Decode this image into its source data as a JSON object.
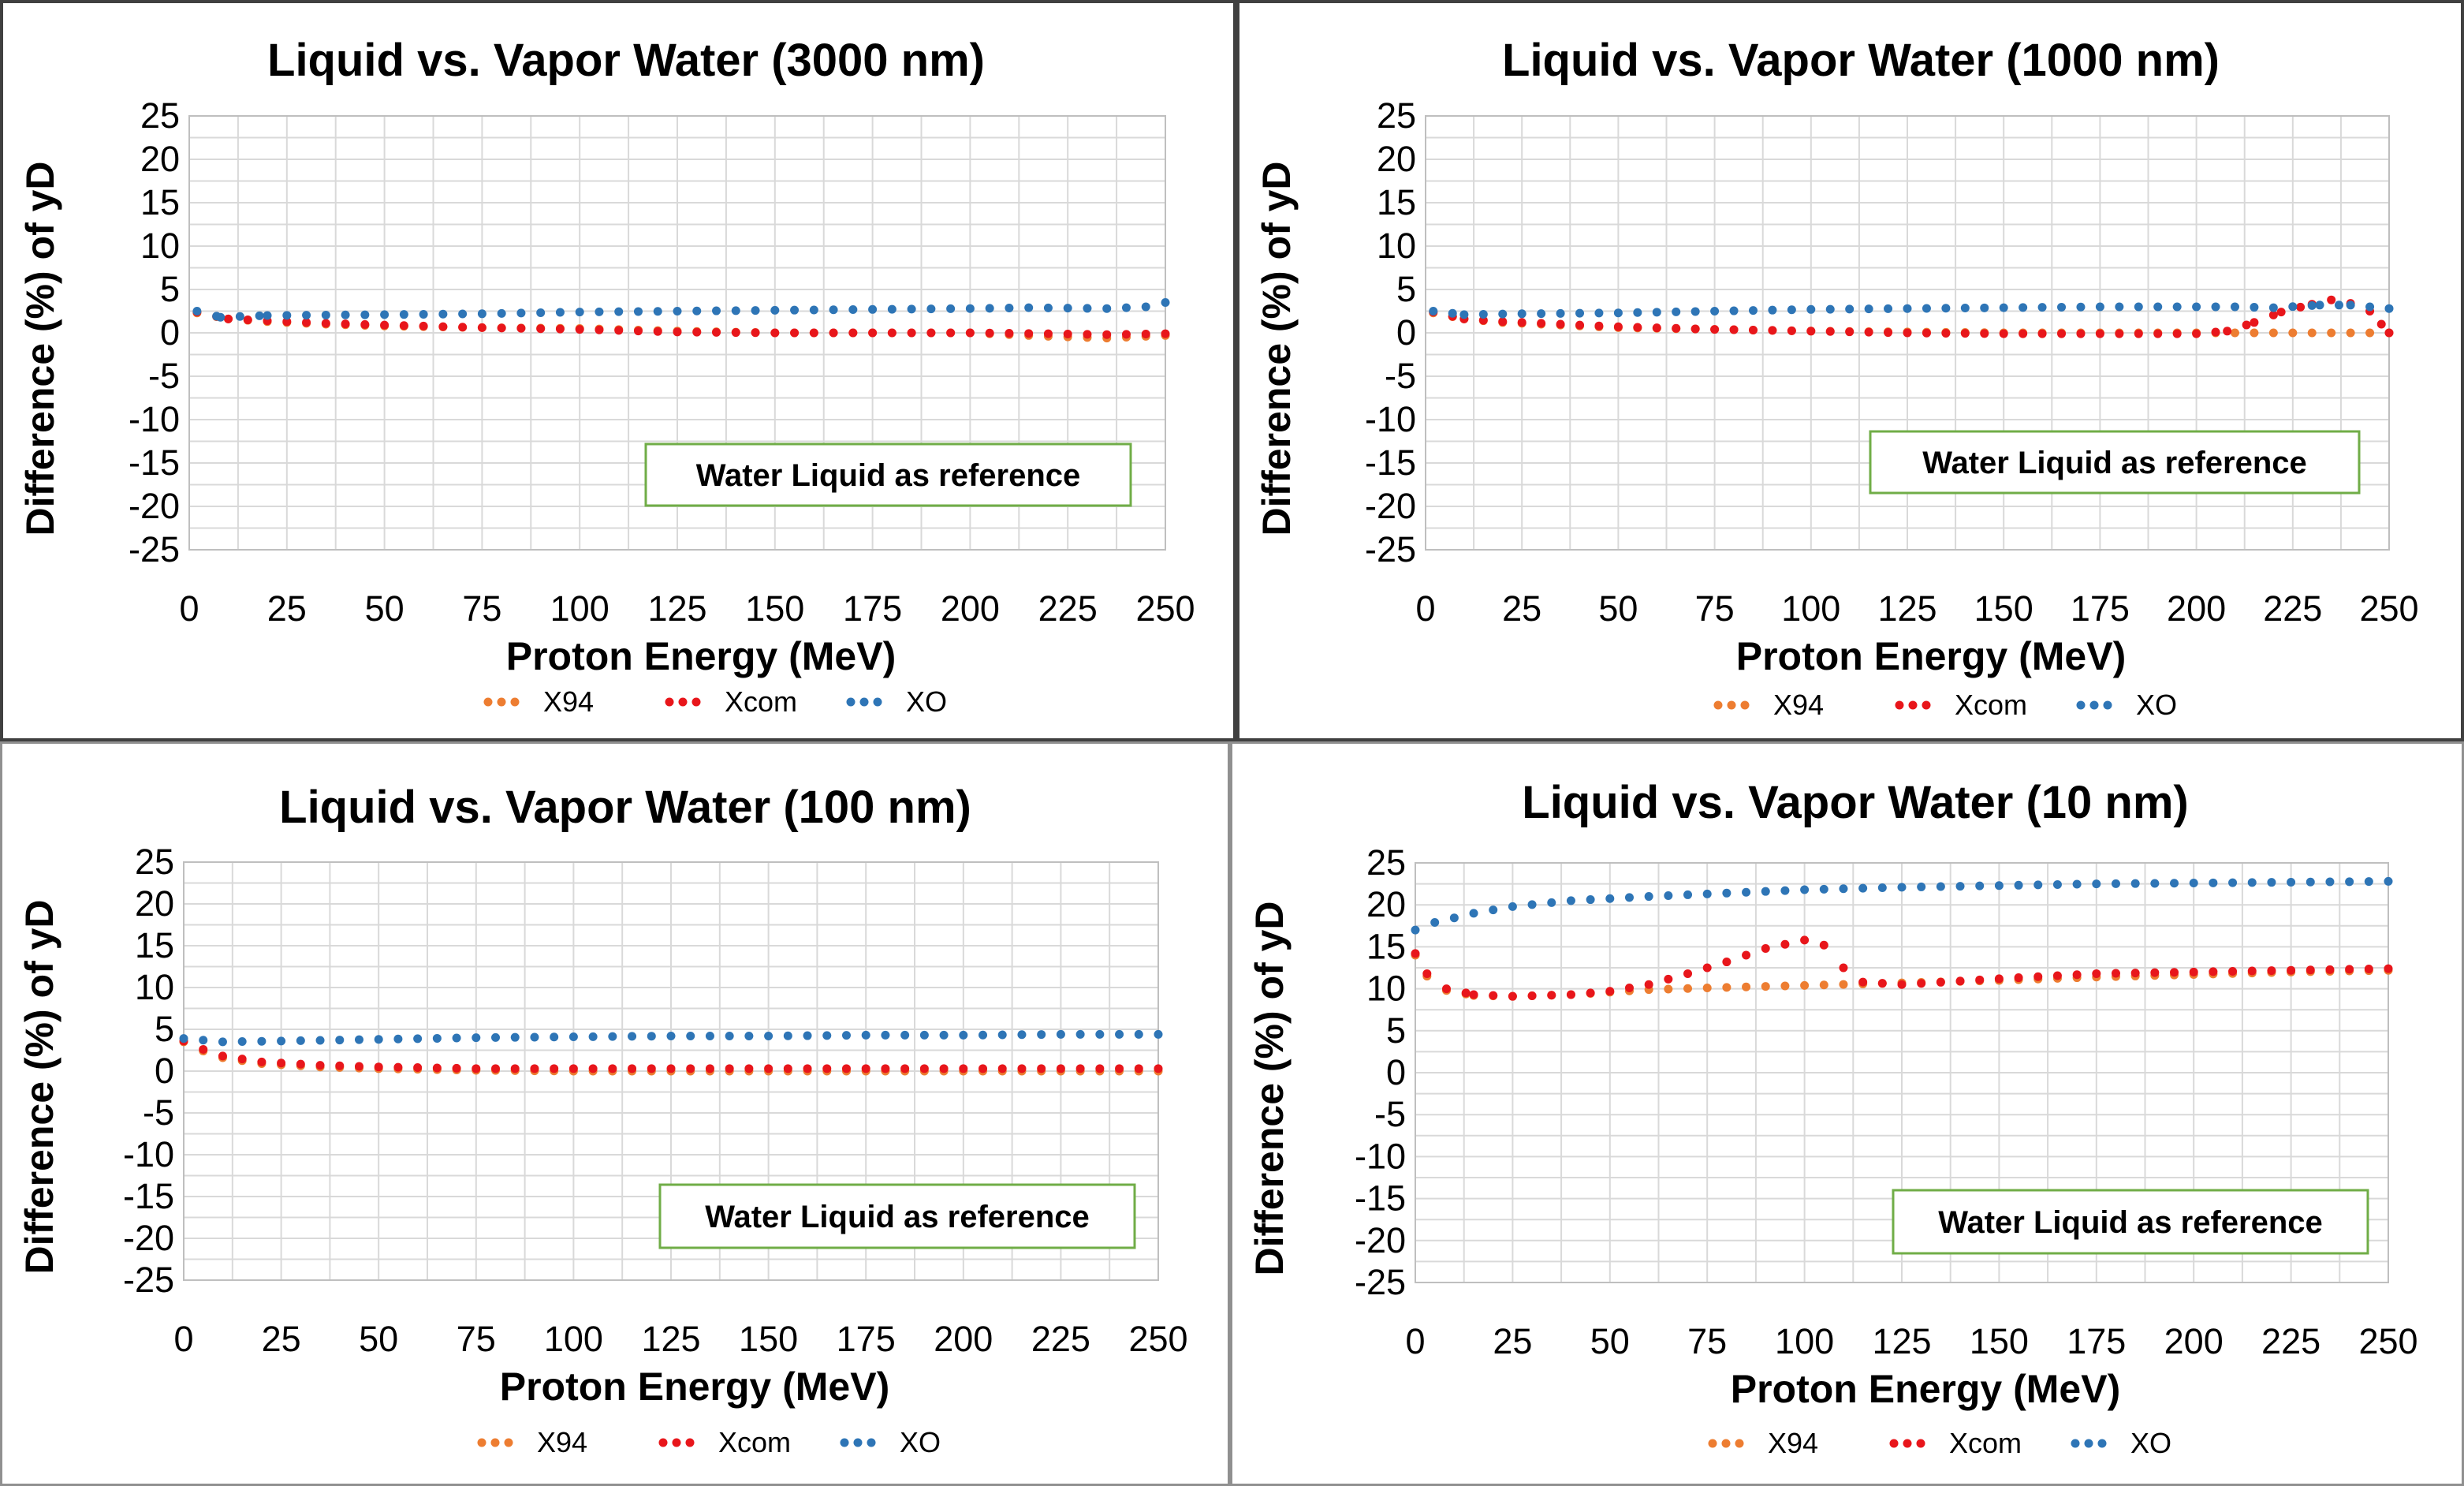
{
  "colors": {
    "X94": "#ED7D31",
    "Xcom": "#E8161B",
    "XO": "#2E75B6",
    "grid": "#D9D9D9",
    "annotation_border": "#70AD47"
  },
  "chart_data": [
    {
      "type": "scatter",
      "title": "Liquid vs. Vapor Water (3000 nm)",
      "xlabel": "Proton Energy (MeV)",
      "ylabel": "Difference (%) of yD",
      "xlim": [
        0,
        250
      ],
      "ylim": [
        -25,
        25
      ],
      "xticks": [
        "0",
        "25",
        "50",
        "75",
        "100",
        "125",
        "150",
        "175",
        "200",
        "225",
        "250"
      ],
      "yticks": [
        "25",
        "20",
        "15",
        "10",
        "5",
        "0",
        "-5",
        "-10",
        "-15",
        "-20",
        "-25"
      ],
      "grid": true,
      "legend": "bottom",
      "annotation": "Water Liquid as reference",
      "series": [
        {
          "name": "X94",
          "color": "#ED7D31",
          "points": [
            [
              2,
              2.3
            ],
            [
              10,
              1.6
            ],
            [
              20,
              1.3
            ],
            [
              35,
              1.0
            ],
            [
              50,
              0.8
            ],
            [
              75,
              0.6
            ],
            [
              100,
              0.5
            ],
            [
              125,
              0.2
            ],
            [
              150,
              0.0
            ],
            [
              175,
              0.0
            ],
            [
              200,
              0.0
            ],
            [
              220,
              -0.4
            ],
            [
              235,
              -0.6
            ],
            [
              250,
              -0.3
            ]
          ]
        },
        {
          "name": "Xcom",
          "color": "#E8161B",
          "points": [
            [
              2,
              2.4
            ],
            [
              10,
              1.6
            ],
            [
              20,
              1.4
            ],
            [
              35,
              1.1
            ],
            [
              50,
              0.9
            ],
            [
              75,
              0.6
            ],
            [
              100,
              0.4
            ],
            [
              125,
              0.1
            ],
            [
              150,
              0.0
            ],
            [
              175,
              0.0
            ],
            [
              200,
              0.0
            ],
            [
              220,
              -0.1
            ],
            [
              235,
              -0.2
            ],
            [
              250,
              -0.1
            ]
          ]
        },
        {
          "name": "XO",
          "color": "#2E75B6",
          "points": [
            [
              2,
              2.5
            ],
            [
              8,
              1.8
            ],
            [
              20,
              2.0
            ],
            [
              50,
              2.1
            ],
            [
              75,
              2.2
            ],
            [
              100,
              2.4
            ],
            [
              125,
              2.5
            ],
            [
              150,
              2.6
            ],
            [
              175,
              2.7
            ],
            [
              200,
              2.8
            ],
            [
              215,
              2.9
            ],
            [
              235,
              2.8
            ],
            [
              245,
              3.0
            ],
            [
              250,
              3.5
            ]
          ]
        }
      ]
    },
    {
      "type": "scatter",
      "title": "Liquid vs. Vapor Water (1000 nm)",
      "xlabel": "Proton Energy (MeV)",
      "ylabel": "Difference (%) of yD",
      "xlim": [
        0,
        250
      ],
      "ylim": [
        -25,
        25
      ],
      "xticks": [
        "0",
        "25",
        "50",
        "75",
        "100",
        "125",
        "150",
        "175",
        "200",
        "225",
        "250"
      ],
      "yticks": [
        "25",
        "20",
        "15",
        "10",
        "5",
        "0",
        "-5",
        "-10",
        "-15",
        "-20",
        "-25"
      ],
      "grid": true,
      "legend": "bottom",
      "annotation": "Water Liquid as reference",
      "series": [
        {
          "name": "X94",
          "color": "#ED7D31",
          "points": [
            [
              2,
              2.3
            ],
            [
              10,
              1.6
            ],
            [
              20,
              1.2
            ],
            [
              35,
              0.9
            ],
            [
              50,
              0.6
            ],
            [
              75,
              0.4
            ],
            [
              100,
              0.2
            ],
            [
              125,
              0.1
            ],
            [
              150,
              0.0
            ],
            [
              175,
              0.0
            ],
            [
              200,
              0.0
            ],
            [
              225,
              0.0
            ],
            [
              250,
              0.0
            ]
          ]
        },
        {
          "name": "Xcom",
          "color": "#E8161B",
          "points": [
            [
              2,
              2.4
            ],
            [
              10,
              1.6
            ],
            [
              20,
              1.3
            ],
            [
              35,
              1.0
            ],
            [
              50,
              0.7
            ],
            [
              75,
              0.4
            ],
            [
              100,
              0.2
            ],
            [
              125,
              0.0
            ],
            [
              150,
              -0.1
            ],
            [
              175,
              -0.1
            ],
            [
              200,
              -0.1
            ],
            [
              208,
              0.2
            ],
            [
              215,
              1.2
            ],
            [
              222,
              2.4
            ],
            [
              230,
              3.3
            ],
            [
              235,
              3.8
            ],
            [
              240,
              3.4
            ],
            [
              245,
              2.5
            ],
            [
              248,
              1.0
            ],
            [
              250,
              0.0
            ]
          ]
        },
        {
          "name": "XO",
          "color": "#2E75B6",
          "points": [
            [
              2,
              2.5
            ],
            [
              10,
              2.1
            ],
            [
              25,
              2.2
            ],
            [
              50,
              2.3
            ],
            [
              75,
              2.5
            ],
            [
              100,
              2.7
            ],
            [
              125,
              2.8
            ],
            [
              150,
              2.9
            ],
            [
              175,
              3.0
            ],
            [
              200,
              3.0
            ],
            [
              210,
              3.0
            ],
            [
              220,
              2.9
            ],
            [
              232,
              3.2
            ],
            [
              240,
              3.2
            ],
            [
              250,
              2.8
            ]
          ]
        }
      ]
    },
    {
      "type": "scatter",
      "title": "Liquid vs. Vapor Water (100 nm)",
      "xlabel": "Proton Energy (MeV)",
      "ylabel": "Difference (%) of yD",
      "xlim": [
        0,
        250
      ],
      "ylim": [
        -25,
        25
      ],
      "xticks": [
        "0",
        "25",
        "50",
        "75",
        "100",
        "125",
        "150",
        "175",
        "200",
        "225",
        "250"
      ],
      "yticks": [
        "25",
        "20",
        "15",
        "10",
        "5",
        "0",
        "-5",
        "-10",
        "-15",
        "-20",
        "-25"
      ],
      "grid": true,
      "legend": "bottom",
      "annotation": "Water Liquid as reference",
      "series": [
        {
          "name": "X94",
          "color": "#ED7D31",
          "points": [
            [
              0,
              3.5
            ],
            [
              5,
              2.4
            ],
            [
              10,
              1.6
            ],
            [
              20,
              0.9
            ],
            [
              35,
              0.5
            ],
            [
              50,
              0.3
            ],
            [
              75,
              0.1
            ],
            [
              100,
              0.0
            ],
            [
              125,
              0.0
            ],
            [
              150,
              0.0
            ],
            [
              175,
              0.0
            ],
            [
              200,
              0.0
            ],
            [
              225,
              0.0
            ],
            [
              250,
              0.0
            ]
          ]
        },
        {
          "name": "Xcom",
          "color": "#E8161B",
          "points": [
            [
              0,
              3.6
            ],
            [
              5,
              2.6
            ],
            [
              10,
              1.8
            ],
            [
              20,
              1.1
            ],
            [
              35,
              0.7
            ],
            [
              50,
              0.5
            ],
            [
              75,
              0.3
            ],
            [
              100,
              0.3
            ],
            [
              125,
              0.3
            ],
            [
              150,
              0.3
            ],
            [
              175,
              0.3
            ],
            [
              200,
              0.3
            ],
            [
              225,
              0.3
            ],
            [
              250,
              0.3
            ]
          ]
        },
        {
          "name": "XO",
          "color": "#2E75B6",
          "points": [
            [
              0,
              3.9
            ],
            [
              10,
              3.5
            ],
            [
              25,
              3.6
            ],
            [
              50,
              3.8
            ],
            [
              75,
              4.0
            ],
            [
              100,
              4.1
            ],
            [
              125,
              4.2
            ],
            [
              150,
              4.2
            ],
            [
              175,
              4.3
            ],
            [
              200,
              4.3
            ],
            [
              225,
              4.4
            ],
            [
              250,
              4.4
            ]
          ]
        }
      ]
    },
    {
      "type": "scatter",
      "title": "Liquid vs. Vapor Water (10 nm)",
      "xlabel": "Proton Energy (MeV)",
      "ylabel": "Difference (%) of yD",
      "xlim": [
        0,
        250
      ],
      "ylim": [
        -25,
        25
      ],
      "xticks": [
        "0",
        "25",
        "50",
        "75",
        "100",
        "125",
        "150",
        "175",
        "200",
        "225",
        "250"
      ],
      "yticks": [
        "25",
        "20",
        "15",
        "10",
        "5",
        "0",
        "-5",
        "-10",
        "-15",
        "-20",
        "-25"
      ],
      "grid": true,
      "legend": "bottom",
      "annotation": "Water Liquid as reference",
      "series": [
        {
          "name": "X94",
          "color": "#ED7D31",
          "points": [
            [
              0,
              14
            ],
            [
              3,
              11.5
            ],
            [
              8,
              9.8
            ],
            [
              15,
              9.2
            ],
            [
              25,
              9.1
            ],
            [
              40,
              9.3
            ],
            [
              50,
              9.6
            ],
            [
              60,
              9.9
            ],
            [
              75,
              10.1
            ],
            [
              100,
              10.4
            ],
            [
              125,
              10.7
            ],
            [
              150,
              11.0
            ],
            [
              175,
              11.4
            ],
            [
              200,
              11.7
            ],
            [
              225,
              12.0
            ],
            [
              250,
              12.2
            ]
          ]
        },
        {
          "name": "Xcom",
          "color": "#E8161B",
          "points": [
            [
              0,
              14.2
            ],
            [
              3,
              11.8
            ],
            [
              8,
              10.0
            ],
            [
              15,
              9.3
            ],
            [
              25,
              9.1
            ],
            [
              40,
              9.3
            ],
            [
              50,
              9.7
            ],
            [
              60,
              10.5
            ],
            [
              70,
              11.8
            ],
            [
              80,
              13.2
            ],
            [
              90,
              14.8
            ],
            [
              100,
              15.8
            ],
            [
              105,
              15.2
            ],
            [
              110,
              12.5
            ],
            [
              115,
              10.8
            ],
            [
              125,
              10.5
            ],
            [
              150,
              11.2
            ],
            [
              175,
              11.8
            ],
            [
              200,
              12.0
            ],
            [
              225,
              12.2
            ],
            [
              250,
              12.4
            ]
          ]
        },
        {
          "name": "XO",
          "color": "#2E75B6",
          "points": [
            [
              0,
              17.0
            ],
            [
              5,
              17.9
            ],
            [
              15,
              19.0
            ],
            [
              25,
              19.8
            ],
            [
              40,
              20.5
            ],
            [
              60,
              21.0
            ],
            [
              80,
              21.4
            ],
            [
              100,
              21.8
            ],
            [
              125,
              22.1
            ],
            [
              150,
              22.3
            ],
            [
              175,
              22.5
            ],
            [
              200,
              22.6
            ],
            [
              225,
              22.7
            ],
            [
              250,
              22.8
            ]
          ]
        }
      ]
    }
  ]
}
